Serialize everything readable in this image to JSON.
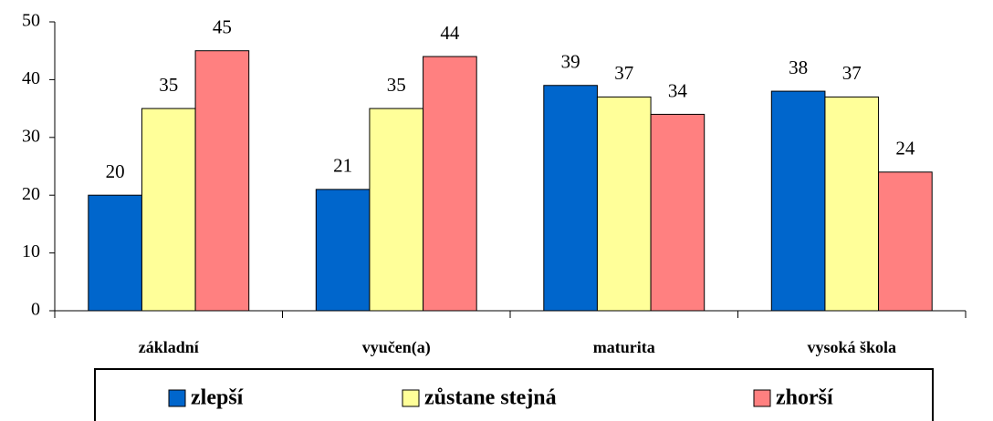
{
  "chart_data": {
    "type": "bar",
    "categories": [
      "základní",
      "vyučen(a)",
      "maturita",
      "vysoká škola"
    ],
    "series": [
      {
        "name": "zlepší",
        "color": "#0066cc",
        "values": [
          20,
          21,
          39,
          38
        ]
      },
      {
        "name": "zůstane stejná",
        "color": "#ffff99",
        "values": [
          35,
          35,
          37,
          37
        ]
      },
      {
        "name": "zhorší",
        "color": "#ff8080",
        "values": [
          45,
          44,
          34,
          24
        ]
      }
    ],
    "ylim": [
      0,
      50
    ],
    "yticks": [
      0,
      10,
      20,
      30,
      40,
      50
    ],
    "grid": false,
    "legend": "bottom"
  }
}
